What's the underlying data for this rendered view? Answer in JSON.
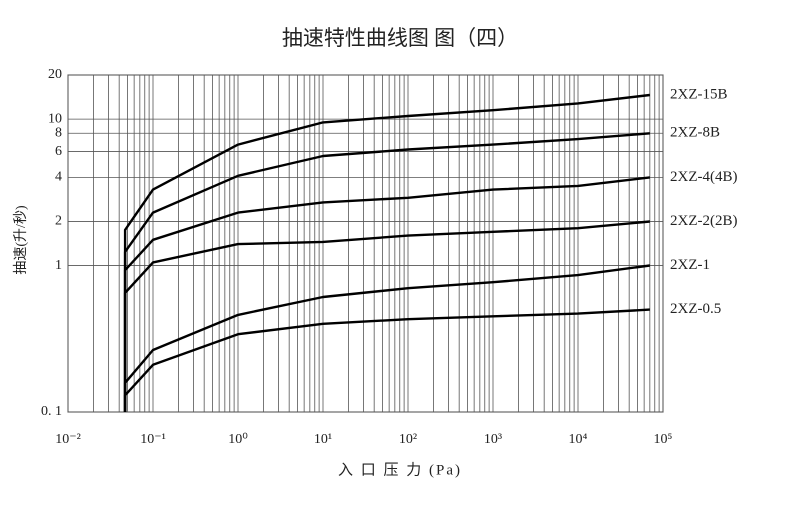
{
  "chart_data": {
    "type": "line",
    "title": "抽速特性曲线图  图（四）",
    "x_label": "入 口 压 力 (Pa)",
    "y_label": "抽速(升/秒)",
    "x_scale": "log",
    "y_scale": "log",
    "grid": true,
    "minor_grid": true,
    "x": [
      0.047,
      0.047,
      0.1,
      1,
      10,
      100,
      1000,
      10000,
      70000
    ],
    "series": [
      {
        "name": "2XZ-15B",
        "color": "#000000",
        "values": [
          0.1,
          1.75,
          3.3,
          6.7,
          9.5,
          10.5,
          11.5,
          12.8,
          14.6
        ]
      },
      {
        "name": "2XZ-8B",
        "color": "#000000",
        "values": [
          0.1,
          1.24,
          2.3,
          4.1,
          5.6,
          6.2,
          6.7,
          7.3,
          8.0
        ]
      },
      {
        "name": "2XZ-4(4B)",
        "color": "#000000",
        "values": [
          0.1,
          0.93,
          1.5,
          2.3,
          2.7,
          2.9,
          3.3,
          3.5,
          4.0
        ]
      },
      {
        "name": "2XZ-2(2B)",
        "color": "#000000",
        "values": [
          0.1,
          0.65,
          1.05,
          1.4,
          1.45,
          1.6,
          1.7,
          1.8,
          2.0
        ]
      },
      {
        "name": "2XZ-1",
        "color": "#000000",
        "values": [
          0.1,
          0.158,
          0.265,
          0.46,
          0.61,
          0.7,
          0.77,
          0.86,
          1.0
        ]
      },
      {
        "name": "2XZ-0.5",
        "color": "#000000",
        "values": [
          0.1,
          0.13,
          0.21,
          0.34,
          0.4,
          0.43,
          0.45,
          0.47,
          0.5
        ]
      }
    ],
    "xlim": [
      0.01,
      100000
    ],
    "xticks": [
      {
        "value": 0.01,
        "label": "10⁻²"
      },
      {
        "value": 0.1,
        "label": "10⁻¹"
      },
      {
        "value": 1,
        "label": "10⁰"
      },
      {
        "value": 10,
        "label": "10¹"
      },
      {
        "value": 100,
        "label": "10²"
      },
      {
        "value": 1000,
        "label": "10³"
      },
      {
        "value": 10000,
        "label": "10⁴"
      },
      {
        "value": 100000,
        "label": "10⁵"
      }
    ],
    "ylim": [
      0.1,
      20
    ],
    "yticks": [
      {
        "value": 0.1,
        "label": "0. 1"
      },
      1,
      2,
      4,
      6,
      8,
      10,
      20
    ]
  }
}
